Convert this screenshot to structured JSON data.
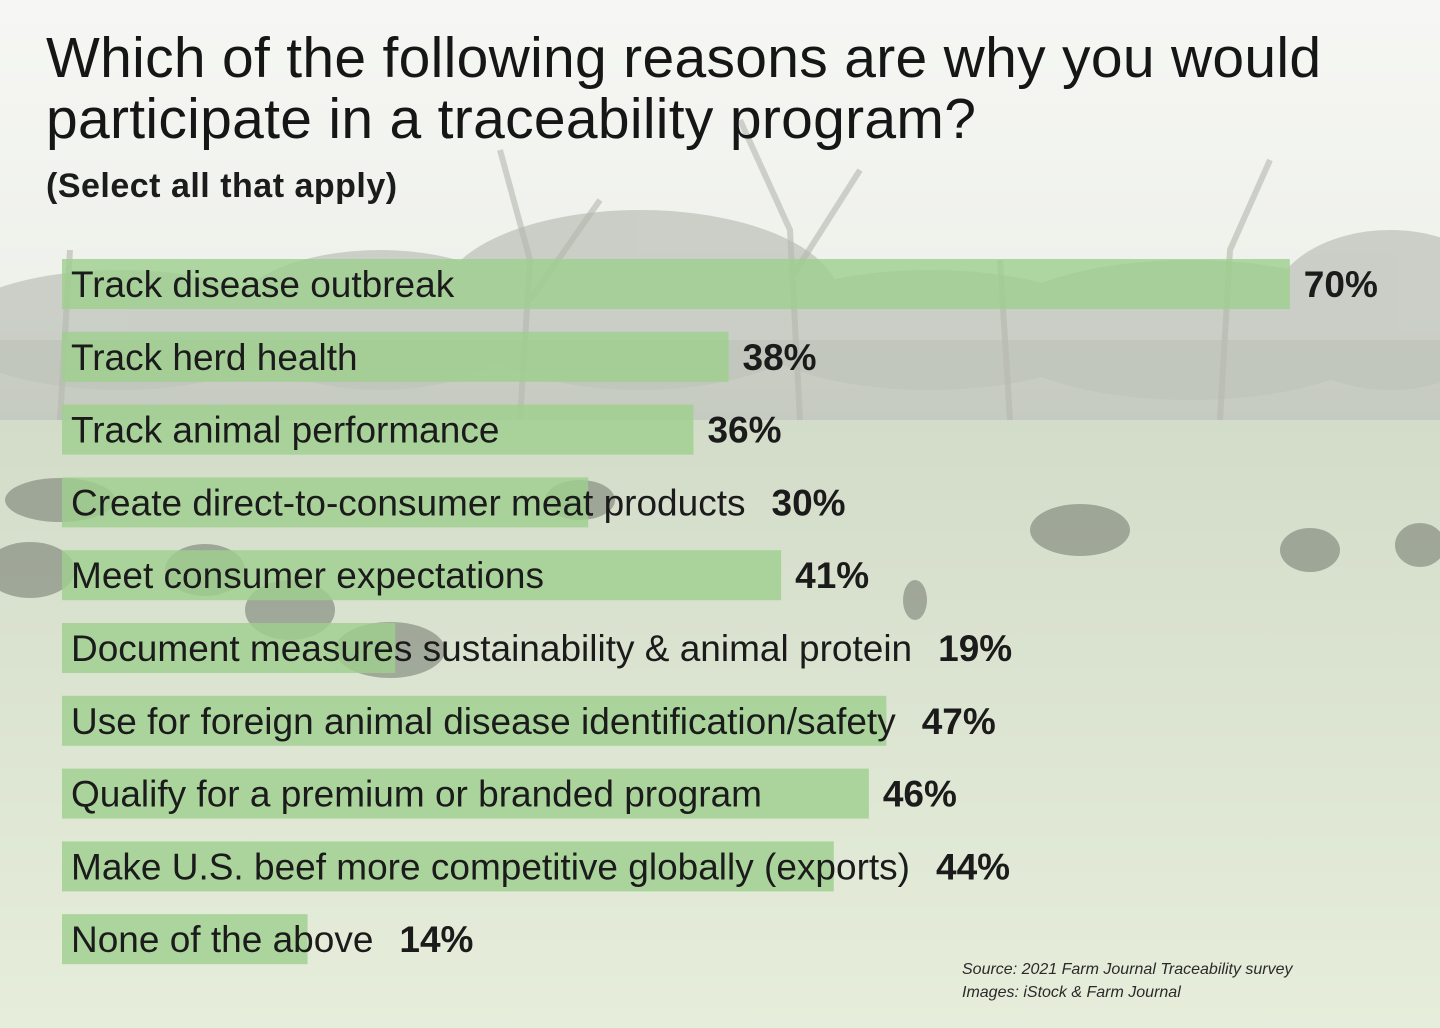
{
  "title": "Which of the following reasons are why you would participate in a traceability program?",
  "subtitle": "(Select all that apply)",
  "chart_data": {
    "type": "bar",
    "orientation": "horizontal",
    "categories": [
      "Track disease outbreak",
      "Track herd health",
      "Track animal performance",
      "Create direct-to-consumer meat products",
      "Meet consumer expectations",
      "Document measures sustainability & animal protein",
      "Use for foreign animal disease identification/safety",
      "Qualify for a premium or branded program",
      "Make U.S. beef more competitive globally (exports)",
      "None of the above"
    ],
    "values": [
      70,
      38,
      36,
      30,
      41,
      19,
      47,
      46,
      44,
      14
    ],
    "value_labels": [
      "70%",
      "38%",
      "36%",
      "30%",
      "41%",
      "19%",
      "47%",
      "46%",
      "44%",
      "14%"
    ],
    "unit": "%",
    "bar_color": "#9fd08f",
    "grid": false,
    "legend": "none"
  },
  "source": {
    "line1": "Source: 2021 Farm Journal Traceability survey",
    "line2": "Images: iStock & Farm Journal"
  }
}
